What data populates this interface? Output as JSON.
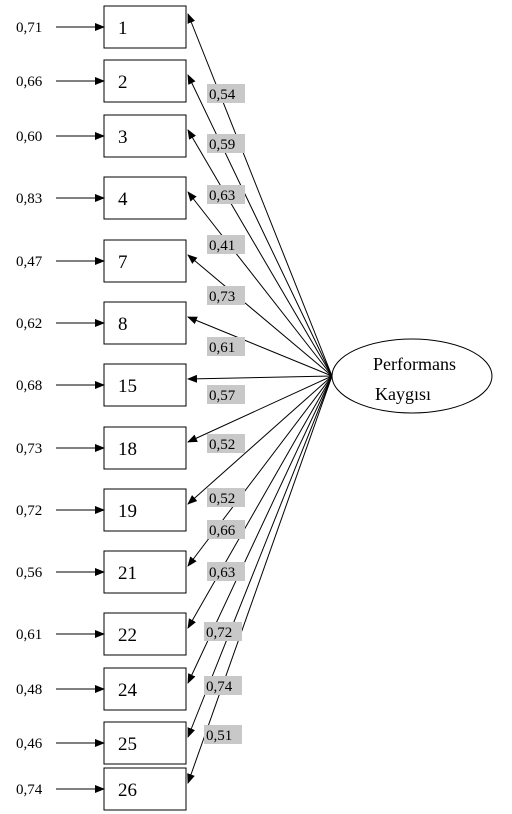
{
  "latent": {
    "line1": "Performans",
    "line2": "Kaygısı"
  },
  "items": [
    {
      "label": "1",
      "error": "0,71",
      "loading": "0,54"
    },
    {
      "label": "2",
      "error": "0,66",
      "loading": "0,59"
    },
    {
      "label": "3",
      "error": "0,60",
      "loading": "0,63"
    },
    {
      "label": "4",
      "error": "0,83",
      "loading": "0,41"
    },
    {
      "label": "7",
      "error": "0,47",
      "loading": "0,73"
    },
    {
      "label": "8",
      "error": "0,62",
      "loading": "0,61"
    },
    {
      "label": "15",
      "error": "0,68",
      "loading": "0,57"
    },
    {
      "label": "18",
      "error": "0,73",
      "loading": "0,52"
    },
    {
      "label": "19",
      "error": "0,72",
      "loading": "0,52"
    },
    {
      "label": "21",
      "error": "0,56",
      "loading": "0,66"
    },
    {
      "label": "22",
      "error": "0,61",
      "loading": "0,63"
    },
    {
      "label": "24",
      "error": "0,48",
      "loading": "0,72"
    },
    {
      "label": "25",
      "error": "0,46",
      "loading": "0,74"
    },
    {
      "label": "26",
      "error": "0,74",
      "loading": "0,51"
    }
  ],
  "colors": {
    "loading_bg": "#c8c8c8",
    "stroke": "#000000"
  }
}
